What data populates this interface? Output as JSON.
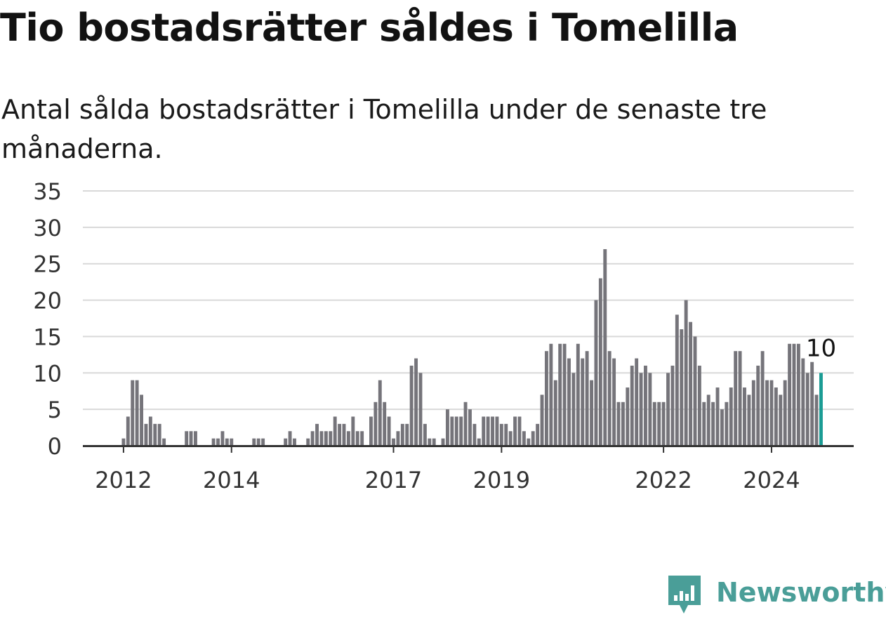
{
  "title": "Tio bostadsrätter såldes i Tomelilla",
  "subtitle": "Antal sålda bostadsrätter i Tomelilla under de senaste tre månaderna.",
  "brand": {
    "name": "Newsworthy",
    "color": "#4a9e98",
    "icon": "newsworthy-logo-icon"
  },
  "colors": {
    "bar": "#75747a",
    "highlight": "#1a9c94",
    "grid": "#d9d9d9",
    "axis": "#333333"
  },
  "chart_data": {
    "type": "bar",
    "title": "Tio bostadsrätter såldes i Tomelilla",
    "subtitle": "Antal sålda bostadsrätter i Tomelilla under de senaste tre månaderna.",
    "xlabel": "",
    "ylabel": "",
    "ylim": [
      0,
      35
    ],
    "yticks": [
      0,
      5,
      10,
      15,
      20,
      25,
      30,
      35
    ],
    "grid": true,
    "x_tick_labels": [
      {
        "label": "2012",
        "index": 1
      },
      {
        "label": "2014",
        "index": 25
      },
      {
        "label": "2017",
        "index": 61
      },
      {
        "label": "2019",
        "index": 85
      },
      {
        "label": "2022",
        "index": 121
      },
      {
        "label": "2024",
        "index": 145
      }
    ],
    "series": [
      {
        "values": [
          0,
          1,
          4,
          9,
          9,
          7,
          3,
          4,
          3,
          3,
          1,
          0,
          0,
          0,
          0,
          2,
          2,
          2,
          0,
          0,
          0,
          1,
          1,
          2,
          1,
          1,
          0,
          0,
          0,
          0,
          1,
          1,
          1,
          0,
          0,
          0,
          0,
          1,
          2,
          1,
          0,
          0,
          1,
          2,
          3,
          2,
          2,
          2,
          4,
          3,
          3,
          2,
          4,
          2,
          2,
          0,
          4,
          6,
          9,
          6,
          4,
          1,
          2,
          3,
          3,
          11,
          12,
          10,
          3,
          1,
          1,
          0,
          1,
          5,
          4,
          4,
          4,
          6,
          5,
          3,
          1,
          4,
          4,
          4,
          4,
          3,
          3,
          2,
          4,
          4,
          2,
          1,
          2,
          3,
          7,
          13,
          14,
          9,
          14,
          14,
          12,
          10,
          14,
          12,
          13,
          9,
          20,
          23,
          27,
          13,
          12,
          6,
          6,
          8,
          11,
          12,
          10,
          11,
          10,
          6,
          6,
          6,
          10,
          11,
          18,
          16,
          20,
          17,
          15,
          11,
          6,
          7,
          6,
          8,
          5,
          6,
          8,
          13,
          13,
          8,
          7,
          9,
          11,
          13,
          9,
          9,
          8,
          7,
          9,
          14,
          14,
          14,
          12,
          10,
          11.5,
          7,
          10
        ]
      }
    ],
    "highlight": {
      "index": 156,
      "value": 10,
      "label": "10"
    }
  }
}
